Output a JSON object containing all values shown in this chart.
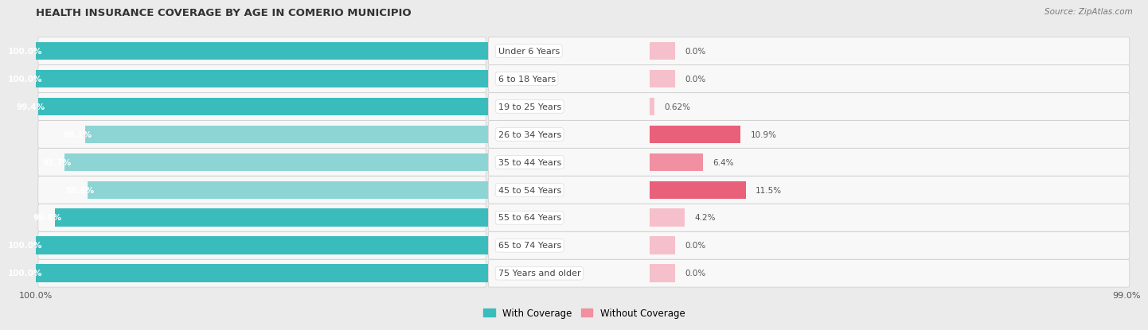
{
  "title": "HEALTH INSURANCE COVERAGE BY AGE IN COMERIO MUNICIPIO",
  "source": "Source: ZipAtlas.com",
  "categories": [
    "Under 6 Years",
    "6 to 18 Years",
    "19 to 25 Years",
    "26 to 34 Years",
    "35 to 44 Years",
    "45 to 54 Years",
    "55 to 64 Years",
    "65 to 74 Years",
    "75 Years and older"
  ],
  "with_coverage": [
    100.0,
    100.0,
    99.4,
    89.1,
    93.7,
    88.5,
    95.8,
    100.0,
    100.0
  ],
  "without_coverage": [
    0.0,
    0.0,
    0.62,
    10.9,
    6.4,
    11.5,
    4.2,
    0.0,
    0.0
  ],
  "with_coverage_labels": [
    "100.0%",
    "100.0%",
    "99.4%",
    "89.1%",
    "93.7%",
    "88.5%",
    "95.8%",
    "100.0%",
    "100.0%"
  ],
  "without_coverage_labels": [
    "0.0%",
    "0.0%",
    "0.62%",
    "10.9%",
    "6.4%",
    "11.5%",
    "4.2%",
    "0.0%",
    "0.0%"
  ],
  "with_colors": [
    "#3BBCBC",
    "#3BBCBC",
    "#3BBCBC",
    "#8DD4D4",
    "#8DD4D4",
    "#8DD4D4",
    "#3BBCBC",
    "#3BBCBC",
    "#3BBCBC"
  ],
  "without_colors": [
    "#F5C0CB",
    "#F5C0CB",
    "#F5C0CB",
    "#E8607A",
    "#F090A0",
    "#E8607A",
    "#F5C0CB",
    "#F5C0CB",
    "#F5C0CB"
  ],
  "background_color": "#ebebeb",
  "row_bg_color": "#f8f8f8",
  "row_border_color": "#cccccc",
  "label_bg_color": "#ffffff",
  "legend_with": "With Coverage",
  "legend_without": "Without Coverage",
  "color_with_legend": "#3BBCBC",
  "color_without_legend": "#F090A0"
}
